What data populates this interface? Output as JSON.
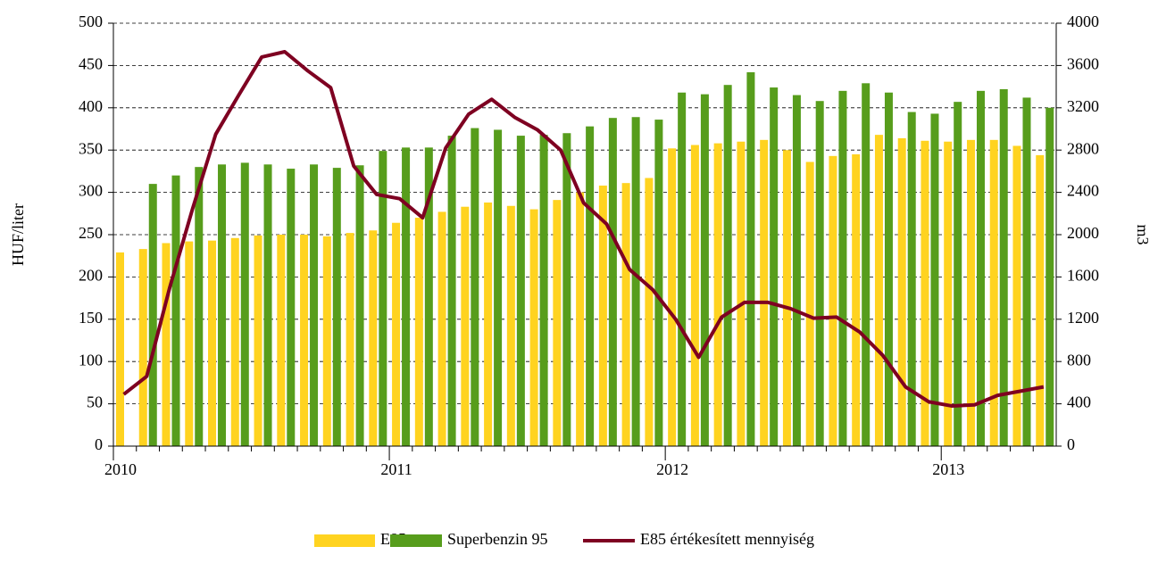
{
  "chart_data": {
    "type": "bar",
    "categories": [
      "2010",
      null,
      null,
      null,
      null,
      null,
      null,
      null,
      null,
      null,
      null,
      null,
      "2011",
      null,
      null,
      null,
      null,
      null,
      null,
      null,
      null,
      null,
      null,
      null,
      "2012",
      null,
      null,
      null,
      null,
      null,
      null,
      null,
      null,
      null,
      null,
      null,
      "2013",
      null,
      null,
      null,
      null
    ],
    "series": [
      {
        "name": "E85",
        "type": "bar",
        "axis": "y",
        "color": "#ffd320",
        "values": [
          229,
          233,
          240,
          242,
          243,
          246,
          249,
          250,
          250,
          248,
          252,
          255,
          264,
          270,
          277,
          283,
          288,
          284,
          280,
          291,
          300,
          308,
          311,
          317,
          352,
          356,
          358,
          360,
          362,
          350,
          336,
          343,
          345,
          368,
          364,
          361,
          360,
          362,
          362,
          355,
          344
        ]
      },
      {
        "name": "Superbenzin 95",
        "type": "bar",
        "axis": "y",
        "color": "#579d1c",
        "values": [
          null,
          310,
          320,
          330,
          333,
          335,
          333,
          328,
          333,
          329,
          332,
          349,
          353,
          353,
          367,
          376,
          374,
          367,
          368,
          370,
          378,
          388,
          389,
          386,
          418,
          416,
          427,
          442,
          424,
          415,
          408,
          420,
          429,
          418,
          395,
          393,
          407,
          420,
          422,
          412,
          400
        ]
      },
      {
        "name": "E85 értékesített mennyiség",
        "type": "line",
        "axis": "y2",
        "color": "#7e0021",
        "values": [
          490,
          660,
          1500,
          2250,
          2950,
          3320,
          3680,
          3730,
          3550,
          3390,
          2650,
          2380,
          2340,
          2160,
          2820,
          3140,
          3280,
          3110,
          2990,
          2800,
          2300,
          2100,
          1670,
          1480,
          1200,
          840,
          1220,
          1360,
          1360,
          1300,
          1210,
          1220,
          1080,
          860,
          560,
          420,
          380,
          390,
          480,
          520,
          560
        ]
      }
    ],
    "y_label": "HUF/liter",
    "y2_label": "m3",
    "ylim": [
      0,
      500
    ],
    "yticks": [
      0,
      50,
      100,
      150,
      200,
      250,
      300,
      350,
      400,
      450,
      500
    ],
    "y2lim": [
      0,
      4000
    ],
    "y2ticks": [
      0,
      400,
      800,
      1200,
      1600,
      2000,
      2400,
      2800,
      3200,
      3600,
      4000
    ],
    "grid": true,
    "legend": "bottom"
  }
}
